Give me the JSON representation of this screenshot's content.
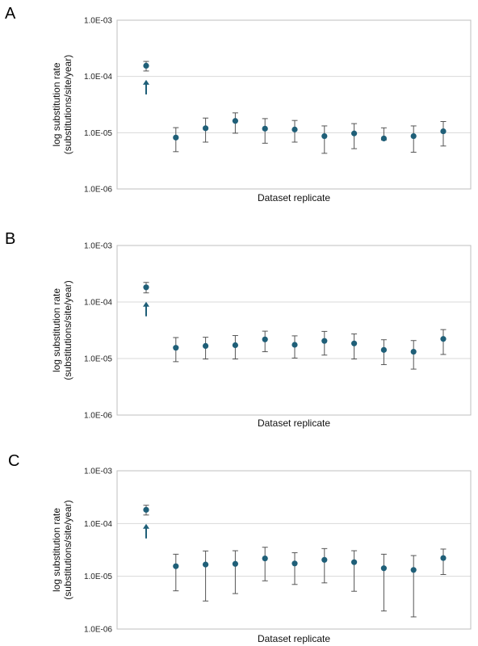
{
  "chart_data": [
    {
      "panel": "A",
      "type": "scatter",
      "xlabel": "Dataset replicate",
      "ylabel": [
        "log substitution rate",
        "(substitutions/site/year)"
      ],
      "yscale": "log",
      "ylim": [
        1e-06,
        0.001
      ],
      "yticks": [
        "1.0E-03",
        "1.0E-04",
        "1.0E-05",
        "1.0E-06"
      ],
      "grid": true,
      "marker_color": "#1f5f78",
      "arrow_under_point": 1,
      "points": [
        {
          "replicate": 1,
          "value": 0.000155,
          "low": 0.000125,
          "high": 0.000185
        },
        {
          "replicate": 2,
          "value": 8.2e-06,
          "low": 4.6e-06,
          "high": 1.23e-05
        },
        {
          "replicate": 3,
          "value": 1.2e-05,
          "low": 6.8e-06,
          "high": 1.82e-05
        },
        {
          "replicate": 4,
          "value": 1.62e-05,
          "low": 9.8e-06,
          "high": 2.25e-05
        },
        {
          "replicate": 5,
          "value": 1.18e-05,
          "low": 6.5e-06,
          "high": 1.78e-05
        },
        {
          "replicate": 6,
          "value": 1.14e-05,
          "low": 6.8e-06,
          "high": 1.65e-05
        },
        {
          "replicate": 7,
          "value": 8.7e-06,
          "low": 4.3e-06,
          "high": 1.32e-05
        },
        {
          "replicate": 8,
          "value": 9.7e-06,
          "low": 5.2e-06,
          "high": 1.45e-05
        },
        {
          "replicate": 9,
          "value": 7.9e-06,
          "low": 7.4e-06,
          "high": 1.22e-05
        },
        {
          "replicate": 10,
          "value": 8.7e-06,
          "low": 4.5e-06,
          "high": 1.32e-05
        },
        {
          "replicate": 11,
          "value": 1.06e-05,
          "low": 5.8e-06,
          "high": 1.58e-05
        }
      ]
    },
    {
      "panel": "B",
      "type": "scatter",
      "xlabel": "Dataset replicate",
      "ylabel": [
        "log substitution rate",
        "(substitutions/site/year)"
      ],
      "yscale": "log",
      "ylim": [
        1e-06,
        0.001
      ],
      "yticks": [
        "1.0E-03",
        "1.0E-04",
        "1.0E-05",
        "1.0E-06"
      ],
      "grid": true,
      "marker_color": "#1f5f78",
      "arrow_under_point": 1,
      "points": [
        {
          "replicate": 1,
          "value": 0.000182,
          "low": 0.000145,
          "high": 0.000222
        },
        {
          "replicate": 2,
          "value": 1.55e-05,
          "low": 8.8e-06,
          "high": 2.35e-05
        },
        {
          "replicate": 3,
          "value": 1.67e-05,
          "low": 9.8e-06,
          "high": 2.38e-05
        },
        {
          "replicate": 4,
          "value": 1.72e-05,
          "low": 9.8e-06,
          "high": 2.55e-05
        },
        {
          "replicate": 5,
          "value": 2.18e-05,
          "low": 1.32e-05,
          "high": 3.05e-05
        },
        {
          "replicate": 6,
          "value": 1.75e-05,
          "low": 1.02e-05,
          "high": 2.52e-05
        },
        {
          "replicate": 7,
          "value": 2.05e-05,
          "low": 1.15e-05,
          "high": 3.02e-05
        },
        {
          "replicate": 8,
          "value": 1.85e-05,
          "low": 9.8e-06,
          "high": 2.72e-05
        },
        {
          "replicate": 9,
          "value": 1.42e-05,
          "low": 7.8e-06,
          "high": 2.15e-05
        },
        {
          "replicate": 10,
          "value": 1.32e-05,
          "low": 6.5e-06,
          "high": 2.08e-05
        },
        {
          "replicate": 11,
          "value": 2.22e-05,
          "low": 1.18e-05,
          "high": 3.25e-05
        }
      ]
    },
    {
      "panel": "C",
      "type": "scatter",
      "xlabel": "Dataset replicate",
      "ylabel": [
        "log substitution rate",
        "(substitutions/site/year)"
      ],
      "yscale": "log",
      "ylim": [
        1e-06,
        0.001
      ],
      "yticks": [
        "1.0E-03",
        "1.0E-04",
        "1.0E-05",
        "1.0E-06"
      ],
      "grid": true,
      "marker_color": "#1f5f78",
      "arrow_under_point": 1,
      "points": [
        {
          "replicate": 1,
          "value": 0.000182,
          "low": 0.000145,
          "high": 0.000222
        },
        {
          "replicate": 2,
          "value": 1.55e-05,
          "low": 5.3e-06,
          "high": 2.62e-05
        },
        {
          "replicate": 3,
          "value": 1.67e-05,
          "low": 3.4e-06,
          "high": 3.02e-05
        },
        {
          "replicate": 4,
          "value": 1.72e-05,
          "low": 4.7e-06,
          "high": 3.05e-05
        },
        {
          "replicate": 5,
          "value": 2.18e-05,
          "low": 8.2e-06,
          "high": 3.55e-05
        },
        {
          "replicate": 6,
          "value": 1.75e-05,
          "low": 7e-06,
          "high": 2.8e-05
        },
        {
          "replicate": 7,
          "value": 2.05e-05,
          "low": 7.5e-06,
          "high": 3.35e-05
        },
        {
          "replicate": 8,
          "value": 1.85e-05,
          "low": 5.2e-06,
          "high": 3.05e-05
        },
        {
          "replicate": 9,
          "value": 1.42e-05,
          "low": 2.2e-06,
          "high": 2.62e-05
        },
        {
          "replicate": 10,
          "value": 1.32e-05,
          "low": 1.7e-06,
          "high": 2.47e-05
        },
        {
          "replicate": 11,
          "value": 2.22e-05,
          "low": 1.08e-05,
          "high": 3.28e-05
        }
      ]
    }
  ]
}
